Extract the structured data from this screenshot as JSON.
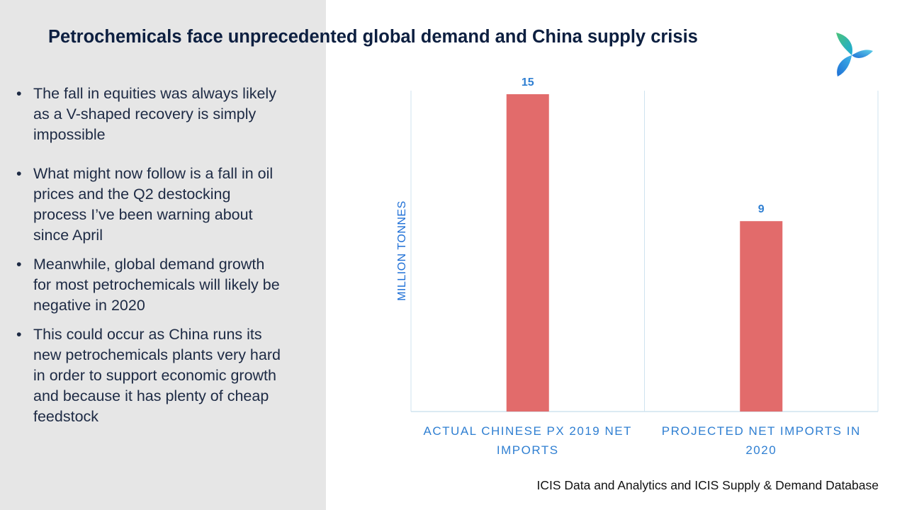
{
  "slide": {
    "title": "Petrochemicals face unprecedented global demand and China supply crisis",
    "source": "ICIS Data and Analytics and ICIS Supply & Demand Database"
  },
  "bullets": [
    {
      "lines": [
        "The fall in equities was always likely",
        "as a V-shaped recovery is simply",
        "impossible"
      ]
    },
    {
      "lines": [
        "What might now follow is a fall in oil",
        "prices and the Q2 destocking",
        "process I’ve been warning about",
        "since April"
      ]
    },
    {
      "lines": [
        "Meanwhile, global demand growth",
        "for most petrochemicals will likely be",
        "negative in 2020"
      ]
    },
    {
      "lines": [
        "This could occur as China runs its",
        "new petrochemicals plants very hard",
        "in order to support economic growth",
        "and because it has plenty of cheap",
        "feedstock"
      ]
    }
  ],
  "bullet_symbol": "•",
  "logo": {
    "icon": "icis-logo-icon",
    "colors": [
      "#4cc37a",
      "#1aa9d9",
      "#1e6fd6"
    ]
  },
  "chart_data": {
    "type": "bar",
    "categories": [
      [
        "ACTUAL CHINESE PX 2019 NET",
        "IMPORTS"
      ],
      [
        "PROJECTED NET IMPORTS IN",
        "2020"
      ]
    ],
    "values": [
      15,
      9
    ],
    "data_labels": [
      "15",
      "9"
    ],
    "ylabel": "MILLION TONNES",
    "ylim": [
      0,
      15
    ],
    "grid": "vertical category separators",
    "bar_color": "#e26b6b",
    "label_color": "#2f7fd2",
    "axis_color": "#cfe3ef"
  }
}
